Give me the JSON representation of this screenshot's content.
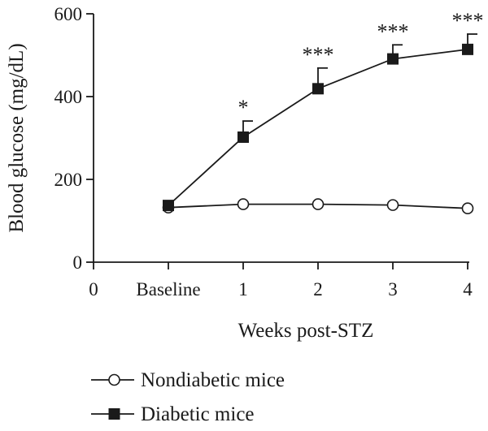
{
  "chart_data": {
    "type": "line",
    "xlabel": "Weeks post-STZ",
    "ylabel": "Blood glucose (mg/dL)",
    "x_ticks": [
      "0",
      "Baseline",
      "1",
      "2",
      "3",
      "4"
    ],
    "y_ticks": [
      "0",
      "200",
      "400",
      "600"
    ],
    "ylim": [
      0,
      600
    ],
    "categories": [
      "Baseline",
      "1",
      "2",
      "3",
      "4"
    ],
    "series": [
      {
        "name": "Nondiabetic mice",
        "marker": "open-circle",
        "color": "#1a1a1a",
        "values": [
          132,
          140,
          140,
          138,
          130
        ]
      },
      {
        "name": "Diabetic mice",
        "marker": "filled-square",
        "color": "#1a1a1a",
        "values": [
          137,
          302,
          419,
          491,
          514
        ],
        "error_upper": [
          0,
          341,
          469,
          525,
          551
        ]
      }
    ],
    "annotations": [
      "",
      "*",
      "***",
      "***",
      "***"
    ],
    "legend_position": "bottom",
    "grid": false
  }
}
